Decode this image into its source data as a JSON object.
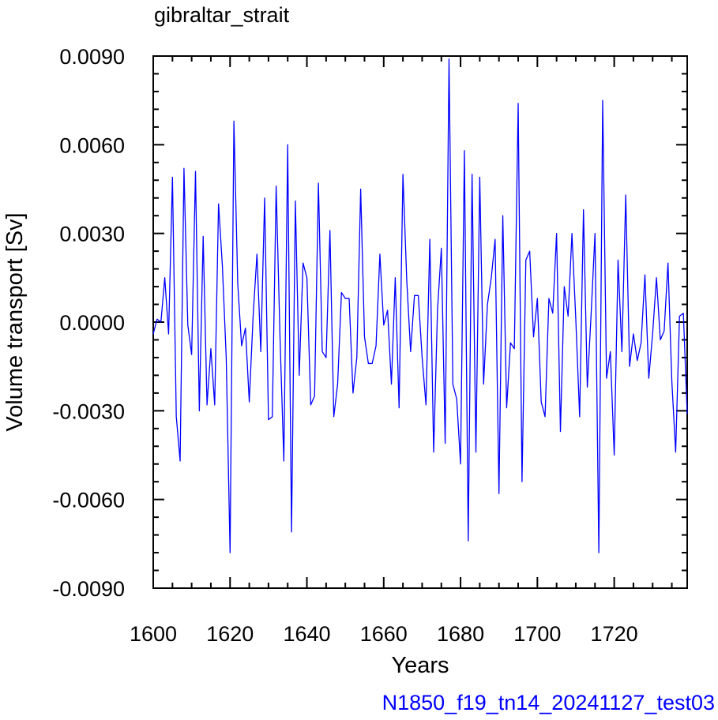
{
  "chart_data": {
    "type": "line",
    "title": "gibraltar_strait",
    "xlabel": "Years",
    "ylabel": "Volume transport [Sv]",
    "xlim": [
      1600,
      1739
    ],
    "ylim": [
      -0.009,
      0.009
    ],
    "xticks": [
      1600,
      1620,
      1640,
      1660,
      1680,
      1700,
      1720
    ],
    "xtick_labels": [
      "1600",
      "1620",
      "1640",
      "1660",
      "1680",
      "1700",
      "1720"
    ],
    "yticks": [
      -0.009,
      -0.006,
      -0.003,
      0.0,
      0.003,
      0.006,
      0.009
    ],
    "ytick_labels": [
      "-0.0090",
      "-0.0060",
      "-0.0030",
      "0.0000",
      "0.0030",
      "0.0060",
      "0.0090"
    ],
    "grid": false,
    "line_color": "#0000ff",
    "series": [
      {
        "x": [
          1600,
          1601,
          1602,
          1603,
          1604,
          1605,
          1606,
          1607,
          1608,
          1609,
          1610,
          1611,
          1612,
          1613,
          1614,
          1615,
          1616,
          1617,
          1618,
          1619,
          1620,
          1621,
          1622,
          1623,
          1624,
          1625,
          1626,
          1627,
          1628,
          1629,
          1630,
          1631,
          1632,
          1633,
          1634,
          1635,
          1636,
          1637,
          1638,
          1639,
          1640,
          1641,
          1642,
          1643,
          1644,
          1645,
          1646,
          1647,
          1648,
          1649,
          1650,
          1651,
          1652,
          1653,
          1654,
          1655,
          1656,
          1657,
          1658,
          1659,
          1660,
          1661,
          1662,
          1663,
          1664,
          1665,
          1666,
          1667,
          1668,
          1669,
          1670,
          1671,
          1672,
          1673,
          1674,
          1675,
          1676,
          1677,
          1678,
          1679,
          1680,
          1681,
          1682,
          1683,
          1684,
          1685,
          1686,
          1687,
          1688,
          1689,
          1690,
          1691,
          1692,
          1693,
          1694,
          1695,
          1696,
          1697,
          1698,
          1699,
          1700,
          1701,
          1702,
          1703,
          1704,
          1705,
          1706,
          1707,
          1708,
          1709,
          1710,
          1711,
          1712,
          1713,
          1714,
          1715,
          1716,
          1717,
          1718,
          1719,
          1720,
          1721,
          1722,
          1723,
          1724,
          1725,
          1726,
          1727,
          1728,
          1729,
          1730,
          1731,
          1732,
          1733,
          1734,
          1735,
          1736,
          1737,
          1738,
          1739
        ],
        "values": [
          -0.0004,
          0.0001,
          0.0,
          0.0015,
          -0.0004,
          0.0049,
          -0.0032,
          -0.0047,
          0.0052,
          -0.0001,
          -0.0011,
          0.0051,
          -0.003,
          0.0029,
          -0.0028,
          -0.0009,
          -0.0028,
          0.004,
          0.0019,
          -0.0012,
          -0.0078,
          0.0068,
          0.0013,
          -0.0008,
          -0.0002,
          -0.0027,
          0.0002,
          0.0023,
          -0.001,
          0.0042,
          -0.0033,
          -0.0032,
          0.0046,
          -0.0005,
          -0.0047,
          0.006,
          -0.0071,
          0.0041,
          -0.0018,
          0.002,
          0.0015,
          -0.0028,
          -0.0025,
          0.0047,
          -0.001,
          -0.0012,
          0.0031,
          -0.0032,
          -0.0021,
          0.001,
          0.0008,
          0.0008,
          -0.0024,
          -0.0012,
          0.0045,
          -0.0005,
          -0.0014,
          -0.0014,
          -0.0008,
          0.0023,
          -0.0001,
          0.0004,
          -0.0021,
          0.0015,
          -0.0029,
          0.005,
          0.0014,
          -0.001,
          0.0009,
          0.0009,
          -0.0012,
          -0.0028,
          0.0028,
          -0.0044,
          0.0004,
          0.0025,
          -0.0041,
          0.0089,
          -0.0021,
          -0.0026,
          -0.0048,
          0.0058,
          -0.0074,
          0.005,
          -0.0044,
          0.0049,
          -0.0021,
          0.0006,
          0.0015,
          0.0028,
          -0.0058,
          0.0036,
          -0.0029,
          -0.0007,
          -0.0009,
          0.0074,
          -0.0054,
          0.0021,
          0.0024,
          -0.0005,
          0.0008,
          -0.0027,
          -0.0032,
          0.0008,
          0.0003,
          0.003,
          -0.0037,
          0.0012,
          0.0002,
          0.003,
          0.0001,
          -0.0032,
          0.0038,
          -0.0022,
          0.0003,
          0.003,
          -0.0078,
          0.0075,
          -0.0019,
          -0.001,
          -0.0045,
          0.0021,
          -0.001,
          0.0043,
          -0.0015,
          -0.0004,
          -0.0013,
          -0.0007,
          0.0016,
          -0.0019,
          -0.0004,
          0.0015,
          -0.0006,
          -0.0003,
          0.002,
          -0.002,
          -0.0044,
          0.0002,
          0.0003,
          -0.0031
        ]
      }
    ]
  },
  "footer": {
    "case_name": "N1850_f19_tn14_20241127_test03",
    "case_color": "#0000ff"
  }
}
